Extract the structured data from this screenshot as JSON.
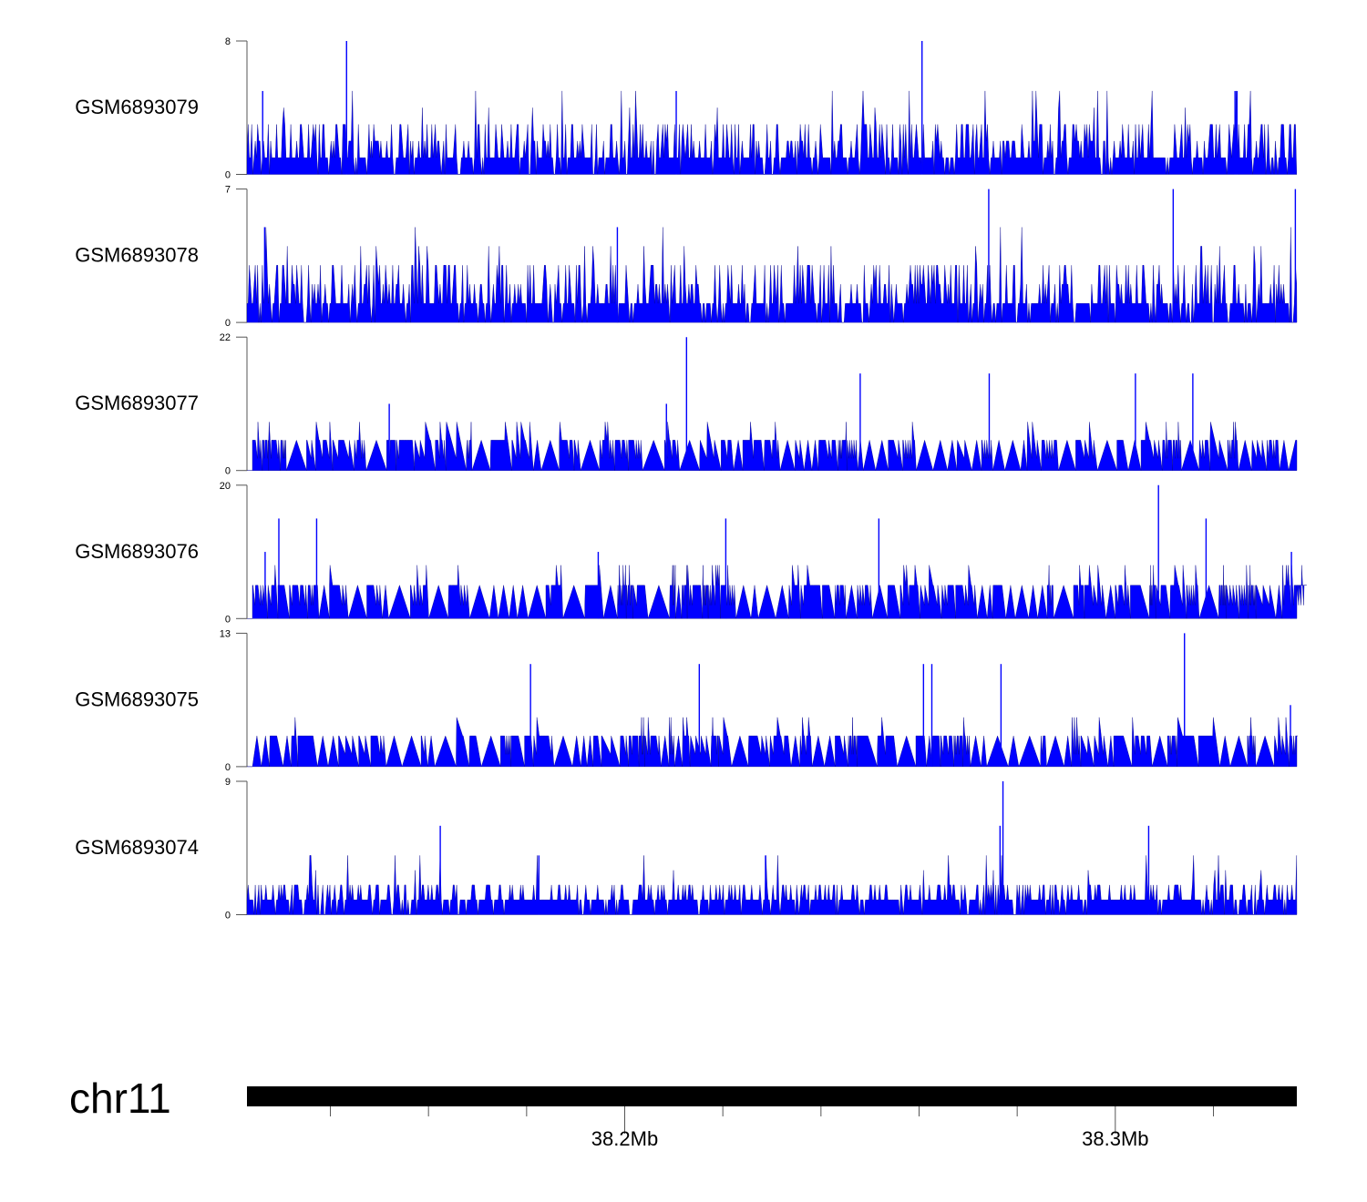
{
  "chart_data": {
    "type": "area",
    "title": "",
    "chromosome": "chr11",
    "xlabel": "",
    "x_unit": "Mb",
    "xlim": [
      38.123,
      38.337
    ],
    "x_ticks": [
      38.14,
      38.16,
      38.18,
      38.2,
      38.22,
      38.24,
      38.26,
      38.28,
      38.3,
      38.32
    ],
    "x_tick_labels": [
      {
        "value": 38.2,
        "label": "38.2Mb"
      },
      {
        "value": 38.3,
        "label": "38.3Mb"
      }
    ],
    "color": "#0000ff",
    "outline_color": "#00008b",
    "tracks": [
      {
        "name": "GSM6893079",
        "ylim": [
          0,
          8
        ],
        "style": "dense",
        "baseline_levels": [
          1,
          2,
          3
        ],
        "peaks": [
          [
            38.1262,
            5
          ],
          [
            38.1433,
            8
          ],
          [
            38.2105,
            5
          ],
          [
            38.2606,
            8
          ],
          [
            38.3248,
            5
          ],
          [
            38.3244,
            5
          ]
        ]
      },
      {
        "name": "GSM6893078",
        "ylim": [
          0,
          7
        ],
        "style": "dense",
        "baseline_levels": [
          1,
          2,
          3
        ],
        "peaks": [
          [
            38.1985,
            5
          ],
          [
            38.2742,
            7
          ],
          [
            38.3118,
            7
          ],
          [
            38.3367,
            7
          ],
          [
            38.1266,
            5
          ]
        ]
      },
      {
        "name": "GSM6893077",
        "ylim": [
          0,
          22
        ],
        "style": "sparse",
        "baseline_levels": [
          5
        ],
        "peaks": [
          [
            38.152,
            11
          ],
          [
            38.2126,
            22
          ],
          [
            38.248,
            16
          ],
          [
            38.2743,
            16
          ],
          [
            38.3041,
            16
          ],
          [
            38.3158,
            16
          ],
          [
            38.2085,
            11
          ]
        ]
      },
      {
        "name": "GSM6893076",
        "ylim": [
          0,
          20
        ],
        "style": "sparse",
        "baseline_levels": [
          5
        ],
        "peaks": [
          [
            38.1295,
            15
          ],
          [
            38.1372,
            15
          ],
          [
            38.2206,
            15
          ],
          [
            38.2518,
            15
          ],
          [
            38.3088,
            20
          ],
          [
            38.3185,
            15
          ],
          [
            38.1946,
            10
          ],
          [
            38.1267,
            10
          ],
          [
            38.3359,
            10
          ]
        ]
      },
      {
        "name": "GSM6893075",
        "ylim": [
          0,
          13
        ],
        "style": "sparse",
        "baseline_levels": [
          3
        ],
        "peaks": [
          [
            38.1808,
            10
          ],
          [
            38.2152,
            10
          ],
          [
            38.2609,
            10
          ],
          [
            38.2626,
            10
          ],
          [
            38.2767,
            10
          ],
          [
            38.3141,
            13
          ],
          [
            38.3357,
            6
          ]
        ]
      },
      {
        "name": "GSM6893074",
        "ylim": [
          0,
          9
        ],
        "style": "dense",
        "baseline_levels": [
          1,
          2
        ],
        "peaks": [
          [
            38.1624,
            6
          ],
          [
            38.2771,
            9
          ],
          [
            38.2765,
            6
          ],
          [
            38.3068,
            6
          ],
          [
            38.1825,
            4
          ],
          [
            38.2287,
            4
          ]
        ]
      }
    ]
  }
}
